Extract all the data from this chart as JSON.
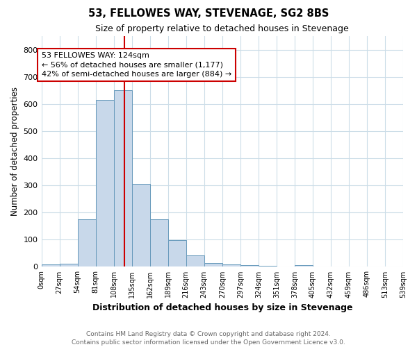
{
  "title1": "53, FELLOWES WAY, STEVENAGE, SG2 8BS",
  "title2": "Size of property relative to detached houses in Stevenage",
  "xlabel": "Distribution of detached houses by size in Stevenage",
  "ylabel": "Number of detached properties",
  "bin_edges": [
    0,
    27,
    54,
    81,
    108,
    135,
    162,
    189,
    216,
    243,
    270,
    297,
    324,
    351,
    378,
    405,
    432,
    459,
    486,
    513,
    540
  ],
  "bar_heights": [
    8,
    12,
    175,
    615,
    650,
    305,
    175,
    98,
    42,
    13,
    8,
    5,
    3,
    0,
    5,
    0,
    0,
    0,
    0,
    0
  ],
  "bar_color": "#c8d8ea",
  "bar_edge_color": "#6699bb",
  "vline_color": "#cc0000",
  "vline_x": 124,
  "annotation_text": "53 FELLOWES WAY: 124sqm\n← 56% of detached houses are smaller (1,177)\n42% of semi-detached houses are larger (884) →",
  "annotation_box_color": "#ffffff",
  "annotation_box_edge": "#cc0000",
  "ylim": [
    0,
    850
  ],
  "yticks": [
    0,
    100,
    200,
    300,
    400,
    500,
    600,
    700,
    800
  ],
  "xtick_labels": [
    "0sqm",
    "27sqm",
    "54sqm",
    "81sqm",
    "108sqm",
    "135sqm",
    "162sqm",
    "189sqm",
    "216sqm",
    "243sqm",
    "270sqm",
    "297sqm",
    "324sqm",
    "351sqm",
    "378sqm",
    "405sqm",
    "432sqm",
    "459sqm",
    "486sqm",
    "513sqm",
    "539sqm"
  ],
  "footnote": "Contains HM Land Registry data © Crown copyright and database right 2024.\nContains public sector information licensed under the Open Government Licence v3.0.",
  "bg_color": "#ffffff",
  "grid_color": "#ccdde8"
}
